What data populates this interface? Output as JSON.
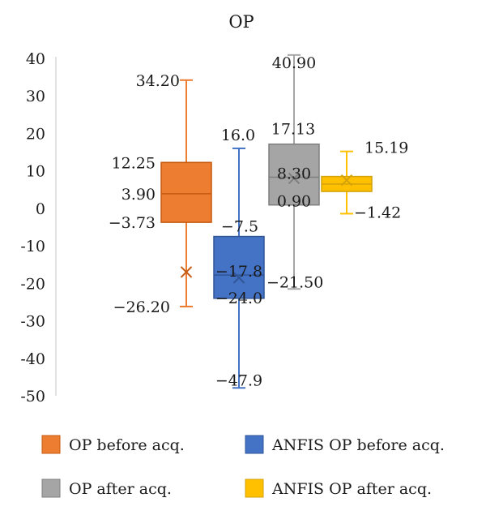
{
  "chart_data": {
    "type": "box",
    "title": "OP",
    "xlabel": "",
    "ylabel": "",
    "ylim": [
      -50,
      40
    ],
    "yticks": [
      40,
      30,
      20,
      10,
      0,
      -10,
      -20,
      -30,
      -40,
      -50
    ],
    "ytick_labels": [
      "40",
      "30",
      "20",
      "10",
      "0",
      "-10",
      "-20",
      "-30",
      "-40",
      "-50"
    ],
    "grid": false,
    "legend_position": "bottom",
    "series": [
      {
        "name": "OP before acq.",
        "color": "#ED7D31",
        "max": 34.2,
        "q3": 12.25,
        "median": 3.9,
        "q1": -3.73,
        "min": -26.2,
        "mean": -17.0,
        "labels": {
          "max": "34.20",
          "q3": "12.25",
          "median": "3.90",
          "q1": "−3.73",
          "min": "−26.20"
        }
      },
      {
        "name": "ANFIS OP before acq.",
        "color": "#4472C4",
        "max": 16.0,
        "q3": -7.5,
        "median": -17.8,
        "q1": -24.0,
        "min": -47.9,
        "mean": -18.5,
        "labels": {
          "max": "16.0",
          "q3": "−7.5",
          "median": "−17.8",
          "q1": "−24.0",
          "min": "−47.9"
        }
      },
      {
        "name": "OP after acq.",
        "color": "#A5A5A5",
        "max": 40.9,
        "q3": 17.13,
        "median": 8.3,
        "q1": 0.9,
        "min": -21.5,
        "mean": 8.0,
        "labels": {
          "max": "40.90",
          "q3": "17.13",
          "median": "8.30",
          "q1": "0.90",
          "min": "−21.50"
        }
      },
      {
        "name": "ANFIS OP after acq.",
        "color": "#FFC000",
        "max": 15.19,
        "q3": 8.5,
        "median": 6.5,
        "q1": 4.5,
        "min": -1.42,
        "mean": 7.5,
        "labels": {
          "max": "15.19",
          "min": "−1.42"
        }
      }
    ]
  }
}
